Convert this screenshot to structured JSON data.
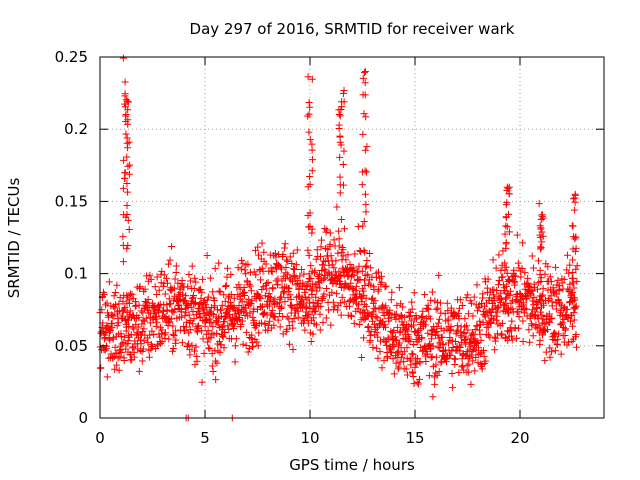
{
  "chart_data": {
    "type": "scatter",
    "title": "Day 297 of 2016, SRMTID for receiver wark",
    "xlabel": "GPS time / hours",
    "ylabel": "SRMTID / TECUs",
    "xlim": [
      0,
      24
    ],
    "ylim": [
      0,
      0.25
    ],
    "xticks": [
      0,
      5,
      10,
      15,
      20
    ],
    "xtick_labels": [
      "0",
      "5",
      "10",
      "15",
      "20"
    ],
    "yticks": [
      0,
      0.05,
      0.1,
      0.15,
      0.2,
      0.25
    ],
    "ytick_labels": [
      "0",
      "0.05",
      "0.1",
      "0.15",
      "0.2",
      "0.25"
    ],
    "grid": true,
    "marker": "+",
    "color": "#ff0000",
    "profile_hours": [
      0,
      1,
      2,
      3,
      4,
      5,
      6,
      7,
      8,
      9,
      10,
      11,
      12,
      13,
      14,
      15,
      16,
      17,
      18,
      19,
      20,
      21,
      22,
      22.7
    ],
    "profile_values": [
      0.065,
      0.06,
      0.065,
      0.075,
      0.08,
      0.065,
      0.07,
      0.08,
      0.09,
      0.09,
      0.075,
      0.105,
      0.09,
      0.08,
      0.055,
      0.055,
      0.055,
      0.055,
      0.06,
      0.08,
      0.085,
      0.075,
      0.075,
      0.08
    ],
    "spike_hours": [
      1.2,
      1.3,
      10.0,
      11.5,
      12.6,
      19.4,
      21.0,
      22.6
    ],
    "spike_values": [
      0.25,
      0.22,
      0.24,
      0.23,
      0.24,
      0.16,
      0.15,
      0.155
    ],
    "zero_hours": [
      4.1,
      4.2,
      6.3
    ],
    "zero_values": [
      0,
      0,
      0
    ]
  }
}
